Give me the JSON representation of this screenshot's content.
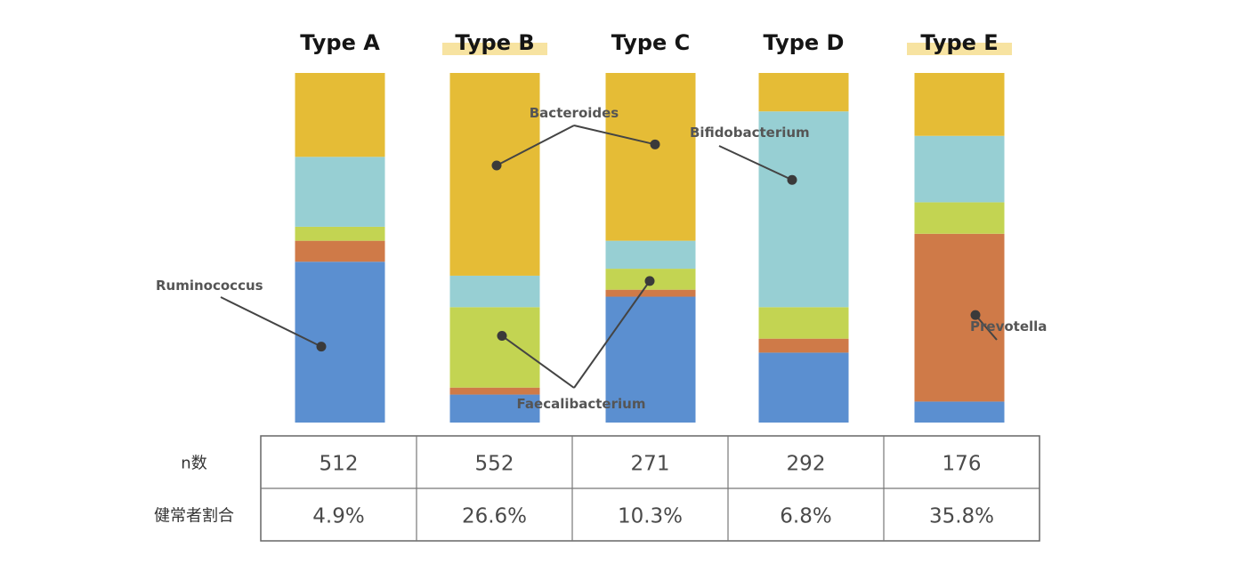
{
  "chart_data": {
    "type": "bar",
    "stacked": true,
    "normalized": true,
    "categories": [
      "Type A",
      "Type B",
      "Type C",
      "Type D",
      "Type E"
    ],
    "highlighted_categories": [
      "Type B",
      "Type E"
    ],
    "series": [
      {
        "name": "Ruminococcus",
        "color": "#5B8FD0",
        "values": [
          46,
          8,
          36,
          20,
          6
        ]
      },
      {
        "name": "Prevotella",
        "color": "#CF7A48",
        "values": [
          6,
          2,
          2,
          4,
          48
        ]
      },
      {
        "name": "Faecalibacterium",
        "color": "#C3D452",
        "values": [
          4,
          23,
          6,
          9,
          9
        ]
      },
      {
        "name": "Bifidobacterium",
        "color": "#97CFD3",
        "values": [
          20,
          9,
          8,
          56,
          19
        ]
      },
      {
        "name": "Bacteroides",
        "color": "#E5BC36",
        "values": [
          24,
          58,
          48,
          11,
          18
        ]
      }
    ],
    "annotations": [
      {
        "text": "Ruminococcus",
        "targets": [
          {
            "category": "Type A",
            "series": "Ruminococcus"
          }
        ]
      },
      {
        "text": "Bacteroides",
        "targets": [
          {
            "category": "Type B",
            "series": "Bacteroides"
          },
          {
            "category": "Type C",
            "series": "Bacteroides"
          }
        ]
      },
      {
        "text": "Bifidobacterium",
        "targets": [
          {
            "category": "Type D",
            "series": "Bifidobacterium"
          }
        ]
      },
      {
        "text": "Faecalibacterium",
        "targets": [
          {
            "category": "Type B",
            "series": "Faecalibacterium"
          },
          {
            "category": "Type C",
            "series": "Faecalibacterium"
          }
        ]
      },
      {
        "text": "Prevotella",
        "targets": [
          {
            "category": "Type E",
            "series": "Prevotella"
          }
        ]
      }
    ],
    "ylim": [
      0,
      100
    ],
    "table": {
      "rows": [
        {
          "label": "n数",
          "values": [
            "512",
            "552",
            "271",
            "292",
            "176"
          ]
        },
        {
          "label": "健常者割合",
          "values": [
            "4.9%",
            "26.6%",
            "10.3%",
            "6.8%",
            "35.8%"
          ]
        }
      ]
    },
    "highlight_color": "#F7E3A1",
    "line_color": "#444444",
    "grid": false
  }
}
